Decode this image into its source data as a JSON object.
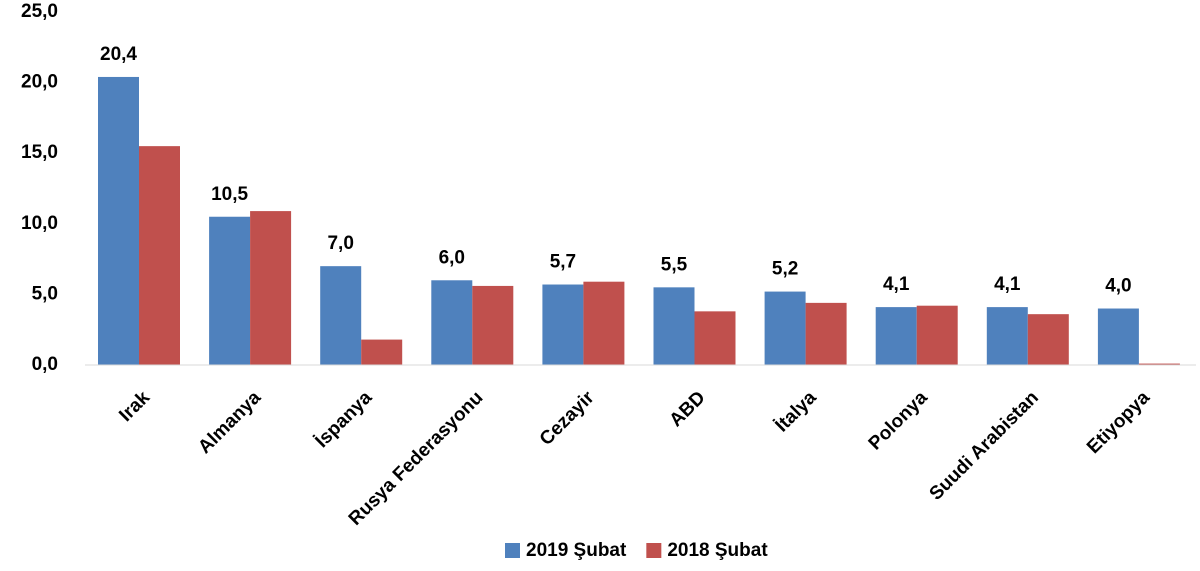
{
  "chart_data": {
    "type": "bar",
    "categories": [
      "Irak",
      "Almanya",
      "İspanya",
      "Rusya Federasyonu",
      "Cezayir",
      "ABD",
      "İtalya",
      "Polonya",
      "Suudi Arabistan",
      "Etiyopya"
    ],
    "series": [
      {
        "name": "2019 Şubat",
        "color": "#4f81bd",
        "values": [
          20.4,
          10.5,
          7.0,
          6.0,
          5.7,
          5.5,
          5.2,
          4.1,
          4.1,
          4.0
        ],
        "value_labels": [
          "20,4",
          "10,5",
          "7,0",
          "6,0",
          "5,7",
          "5,5",
          "5,2",
          "4,1",
          "4,1",
          "4,0"
        ]
      },
      {
        "name": "2018 Şubat",
        "color": "#c0504d",
        "values": [
          15.5,
          10.9,
          1.8,
          5.6,
          5.9,
          3.8,
          4.4,
          4.2,
          3.6,
          0.1
        ]
      }
    ],
    "ylim": [
      0,
      25
    ],
    "yticks": [
      {
        "value": 0,
        "label": "0,0"
      },
      {
        "value": 5,
        "label": "5,0"
      },
      {
        "value": 10,
        "label": "10,0"
      },
      {
        "value": 15,
        "label": "15,0"
      },
      {
        "value": 20,
        "label": "20,0"
      },
      {
        "value": 25,
        "label": "25,0"
      }
    ],
    "legend": "bottom"
  }
}
